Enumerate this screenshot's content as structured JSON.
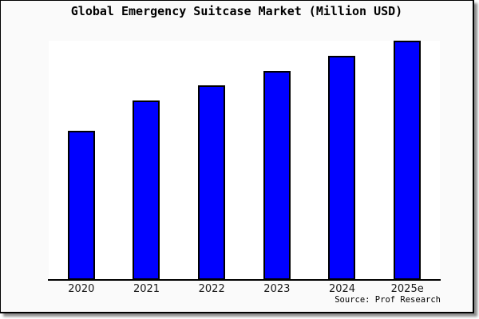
{
  "title": "Global Emergency Suitcase Market (Million USD)",
  "source": "Source: Prof Research",
  "colors": {
    "bar_fill": "#0000ff",
    "bar_outline": "#000000",
    "card_background": "#fafafa",
    "plot_background": "#ffffff",
    "frame_border": "#000000",
    "text": "#000000"
  },
  "chart_data": {
    "type": "bar",
    "title": "Global Emergency Suitcase Market (Million USD)",
    "categories": [
      "2020",
      "2021",
      "2022",
      "2023",
      "2024",
      "2025e"
    ],
    "values": [
      100,
      120,
      130,
      140,
      150,
      160
    ],
    "ylim": [
      0,
      160
    ],
    "xlabel": "",
    "ylabel": "",
    "y_tick_labels": [],
    "grid": false,
    "legend": false,
    "annotations": [
      "Source: Prof Research"
    ]
  }
}
